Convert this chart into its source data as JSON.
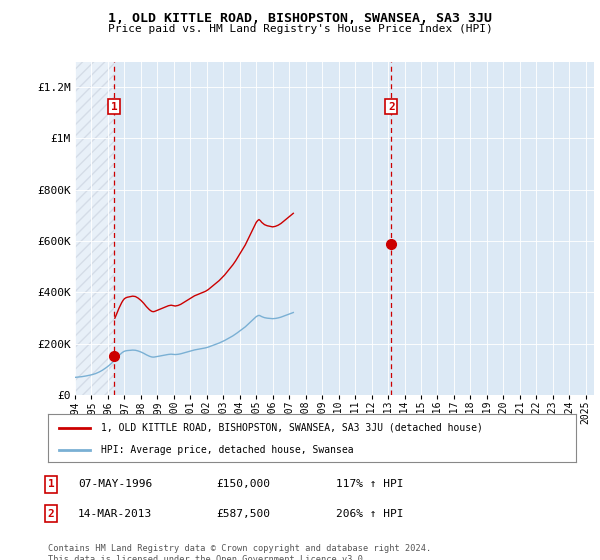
{
  "title": "1, OLD KITTLE ROAD, BISHOPSTON, SWANSEA, SA3 3JU",
  "subtitle": "Price paid vs. HM Land Registry's House Price Index (HPI)",
  "legend_line1": "1, OLD KITTLE ROAD, BISHOPSTON, SWANSEA, SA3 3JU (detached house)",
  "legend_line2": "HPI: Average price, detached house, Swansea",
  "footnote": "Contains HM Land Registry data © Crown copyright and database right 2024.\nThis data is licensed under the Open Government Licence v3.0.",
  "marker1_label": "1",
  "marker1_date": "07-MAY-1996",
  "marker1_price": "£150,000",
  "marker1_hpi": "117% ↑ HPI",
  "marker1_year": 1996.37,
  "marker1_value": 150000,
  "marker2_label": "2",
  "marker2_date": "14-MAR-2013",
  "marker2_price": "£587,500",
  "marker2_hpi": "206% ↑ HPI",
  "marker2_year": 2013.2,
  "marker2_value": 587500,
  "property_color": "#cc0000",
  "hpi_color": "#7ab0d4",
  "background_plot": "#dce9f5",
  "ylim": [
    0,
    1300000
  ],
  "xlim_start": 1994.0,
  "xlim_end": 2025.5,
  "yticks": [
    0,
    200000,
    400000,
    600000,
    800000,
    1000000,
    1200000
  ],
  "ytick_labels": [
    "£0",
    "£200K",
    "£400K",
    "£600K",
    "£800K",
    "£1M",
    "£1.2M"
  ],
  "xticks": [
    1994,
    1995,
    1996,
    1997,
    1998,
    1999,
    2000,
    2001,
    2002,
    2003,
    2004,
    2005,
    2006,
    2007,
    2008,
    2009,
    2010,
    2011,
    2012,
    2013,
    2014,
    2015,
    2016,
    2017,
    2018,
    2019,
    2020,
    2021,
    2022,
    2023,
    2024,
    2025
  ],
  "hpi_base_values": [
    68000,
    68500,
    69000,
    69500,
    70000,
    70800,
    71600,
    72500,
    73500,
    74500,
    75500,
    76800,
    78000,
    79500,
    81000,
    82800,
    85000,
    87500,
    90000,
    93000,
    96000,
    99500,
    103000,
    107000,
    111000,
    115500,
    120000,
    125000,
    130000,
    135500,
    141000,
    147000,
    153000,
    158000,
    163000,
    167000,
    170000,
    171500,
    172500,
    173000,
    173500,
    174000,
    174500,
    174200,
    173800,
    172500,
    171000,
    169000,
    167000,
    164500,
    162000,
    159000,
    156000,
    153500,
    151000,
    149000,
    147500,
    147000,
    147500,
    148500,
    149500,
    150500,
    151500,
    152500,
    153500,
    154500,
    155500,
    156500,
    157500,
    158000,
    158500,
    158000,
    157500,
    157000,
    157500,
    158000,
    159000,
    160000,
    161500,
    163000,
    164500,
    166000,
    167500,
    169000,
    170500,
    172000,
    173500,
    175000,
    176000,
    177000,
    178000,
    179000,
    180000,
    181000,
    182000,
    183000,
    184500,
    186000,
    188000,
    190000,
    192000,
    194000,
    196000,
    198000,
    200000,
    202000,
    204500,
    207000,
    209500,
    212000,
    215000,
    218000,
    221000,
    224000,
    227000,
    230000,
    233500,
    237000,
    241000,
    245000,
    249000,
    253000,
    257000,
    261000,
    265000,
    270000,
    275000,
    280000,
    285000,
    290000,
    295000,
    300000,
    305000,
    308000,
    310000,
    308000,
    305000,
    303000,
    301000,
    300000,
    299000,
    298500,
    298000,
    297500,
    297000,
    297500,
    298000,
    299000,
    300000,
    301500,
    303000,
    305000,
    307000,
    309000,
    311000,
    313000,
    315000,
    317000,
    319000,
    321000
  ],
  "prop_base_price": 150000,
  "prop_base_hpi_index": 68000,
  "prop2_base_price": 587500,
  "prop2_base_hpi_index": 157500,
  "hpi_start_year": 1994.0,
  "hpi_month_step": 0.08333
}
